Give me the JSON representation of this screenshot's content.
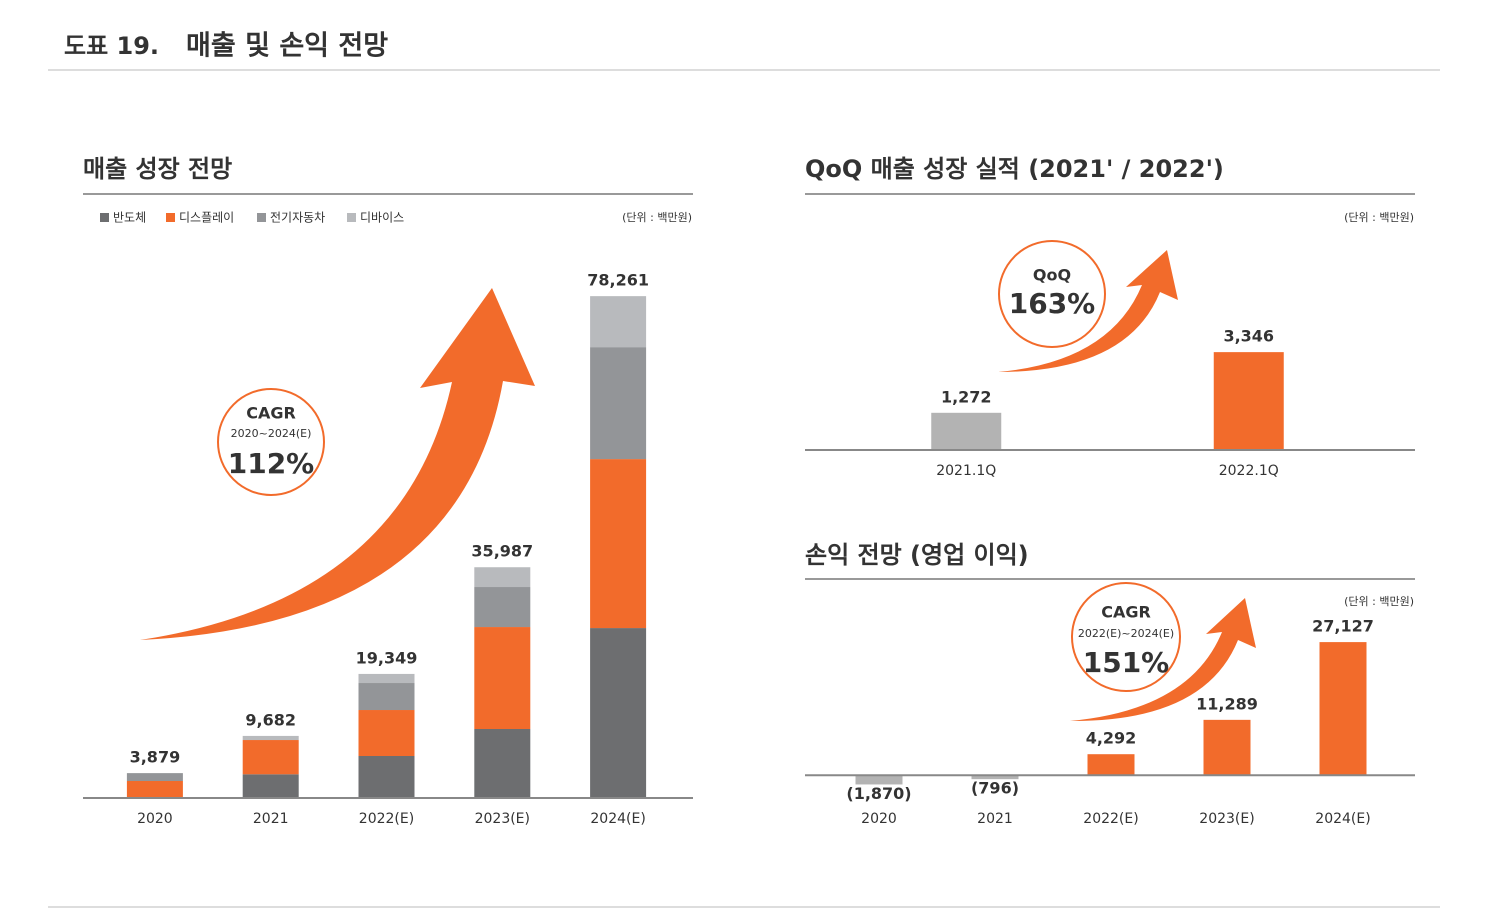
{
  "figure_label": "도표 19.",
  "figure_title": "매출 및 손익 전망",
  "chart_data": [
    {
      "type": "stacked_bar",
      "title": "매출 성장 전망",
      "unit": "(단위 : 백만원)",
      "categories": [
        "2020",
        "2021",
        "2022(E)",
        "2023(E)",
        "2024(E)"
      ],
      "series": [
        {
          "name": "반도체",
          "color": "#6d6e70",
          "values": [
            0,
            3700,
            6550,
            10760,
            26500
          ]
        },
        {
          "name": "디스플레이",
          "color": "#f26b2b",
          "values": [
            2650,
            5340,
            7170,
            15900,
            26350
          ]
        },
        {
          "name": "전기자동차",
          "color": "#939598",
          "values": [
            1229,
            0,
            4210,
            6240,
            17460
          ]
        },
        {
          "name": "디바이스",
          "color": "#b8babd",
          "values": [
            0,
            642,
            1419,
            3087,
            7951
          ]
        }
      ],
      "totals": [
        3879,
        9682,
        19349,
        35987,
        78261
      ],
      "total_labels": [
        "3,879",
        "9,682",
        "19,349",
        "35,987",
        "78,261"
      ],
      "total_label_colors": [
        "#333333",
        "#333333",
        "#f26b2b",
        "#f26b2b",
        "#f26b2b"
      ],
      "ylim": [
        0,
        80000
      ],
      "annotation": {
        "label": "CAGR",
        "period": "2020~2024(E)",
        "value": "112%"
      }
    },
    {
      "type": "bar",
      "title": "QoQ 매출 성장 실적 (2021' / 2022')",
      "unit": "(단위 : 백만원)",
      "categories": [
        "2021.1Q",
        "2022.1Q"
      ],
      "values": [
        1272,
        3346
      ],
      "value_labels": [
        "1,272",
        "3,346"
      ],
      "colors": [
        "#b3b3b3",
        "#f26b2b"
      ],
      "ylim": [
        0,
        4000
      ],
      "annotation": {
        "label": "QoQ",
        "value": "163%"
      }
    },
    {
      "type": "bar",
      "title": "손익 전망 (영업 이익)",
      "unit": "(단위 : 백만원)",
      "categories": [
        "2020",
        "2021",
        "2022(E)",
        "2023(E)",
        "2024(E)"
      ],
      "values": [
        -1870,
        -796,
        4292,
        11289,
        27127
      ],
      "value_labels": [
        "(1,870)",
        "(796)",
        "4,292",
        "11,289",
        "27,127"
      ],
      "colors": [
        "#b3b3b3",
        "#b3b3b3",
        "#f26b2b",
        "#f26b2b",
        "#f26b2b"
      ],
      "ylim": [
        -3000,
        30000
      ],
      "annotation": {
        "label": "CAGR",
        "period": "2022(E)~2024(E)",
        "value": "151%"
      }
    }
  ]
}
